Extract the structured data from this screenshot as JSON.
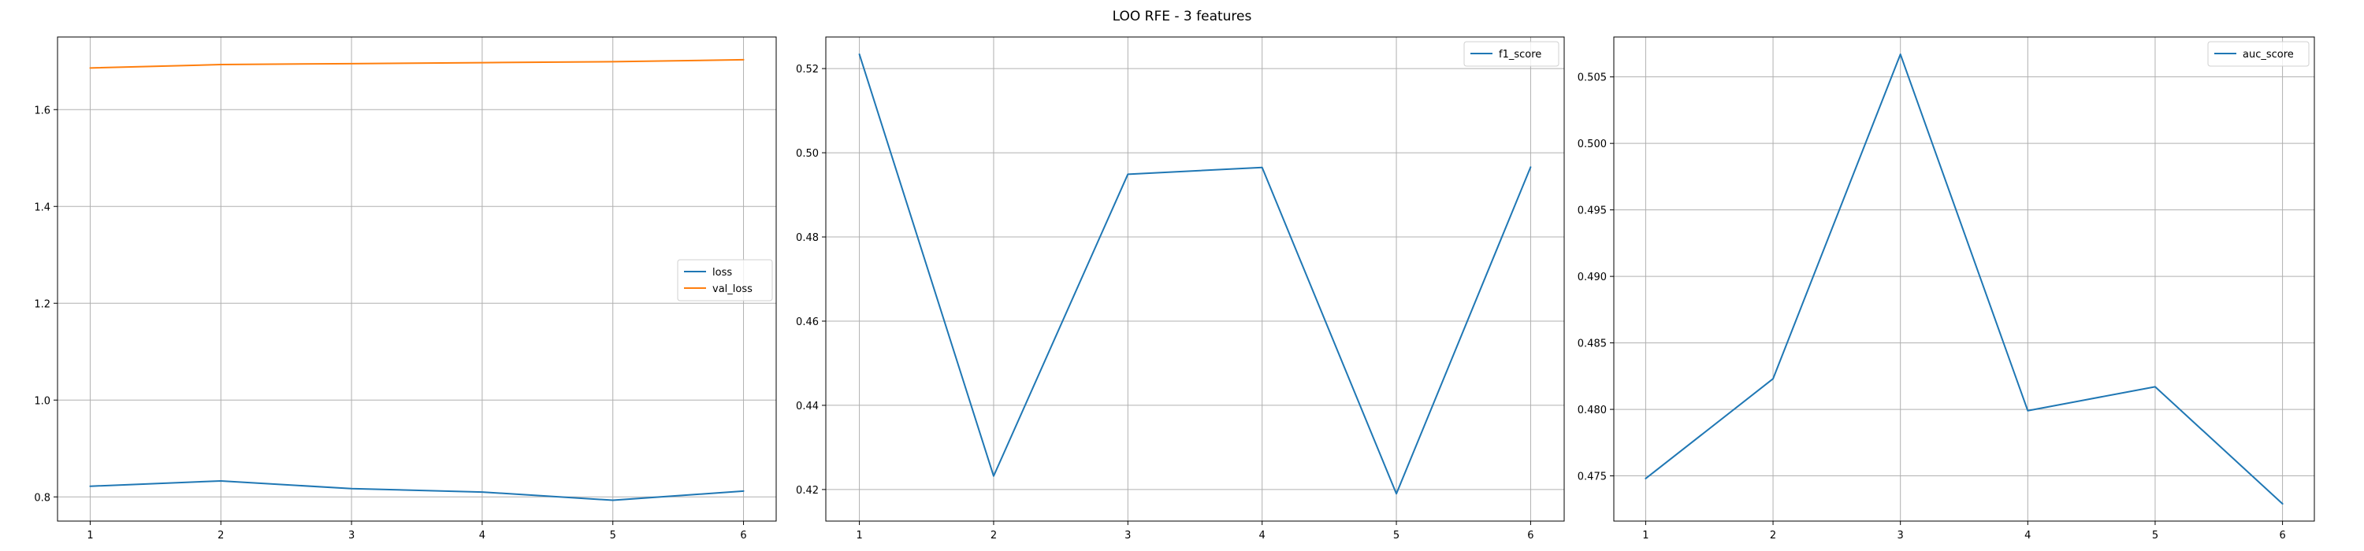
{
  "figure": {
    "title": "LOO RFE - 3 features"
  },
  "chart_data": [
    {
      "type": "line",
      "x": [
        1,
        2,
        3,
        4,
        5,
        6
      ],
      "xticks": [
        1,
        2,
        3,
        4,
        5,
        6
      ],
      "ylim": [
        0.75,
        1.75
      ],
      "yticks": [
        0.8,
        1.0,
        1.2,
        1.4,
        1.6
      ],
      "ytick_decimals": 1,
      "grid": true,
      "legend_position": "center-right",
      "series": [
        {
          "name": "loss",
          "color": "#1f77b4",
          "values": [
            0.822,
            0.833,
            0.817,
            0.81,
            0.793,
            0.812
          ]
        },
        {
          "name": "val_loss",
          "color": "#ff7f0e",
          "values": [
            1.686,
            1.693,
            1.695,
            1.697,
            1.699,
            1.703
          ]
        }
      ]
    },
    {
      "type": "line",
      "x": [
        1,
        2,
        3,
        4,
        5,
        6
      ],
      "xticks": [
        1,
        2,
        3,
        4,
        5,
        6
      ],
      "ylim": [
        0.4125,
        0.5275
      ],
      "yticks": [
        0.42,
        0.44,
        0.46,
        0.48,
        0.5,
        0.52
      ],
      "ytick_decimals": 2,
      "grid": true,
      "legend_position": "top-right",
      "series": [
        {
          "name": "f1_score",
          "color": "#1f77b4",
          "values": [
            0.5234,
            0.4232,
            0.4949,
            0.4965,
            0.419,
            0.4966
          ]
        }
      ]
    },
    {
      "type": "line",
      "x": [
        1,
        2,
        3,
        4,
        5,
        6
      ],
      "xticks": [
        1,
        2,
        3,
        4,
        5,
        6
      ],
      "ylim": [
        0.4716,
        0.508
      ],
      "yticks": [
        0.475,
        0.48,
        0.485,
        0.49,
        0.495,
        0.5,
        0.505
      ],
      "ytick_decimals": 3,
      "grid": true,
      "legend_position": "top-right",
      "series": [
        {
          "name": "auc_score",
          "color": "#1f77b4",
          "values": [
            0.4748,
            0.4823,
            0.5067,
            0.4799,
            0.4817,
            0.4729
          ]
        }
      ]
    }
  ]
}
